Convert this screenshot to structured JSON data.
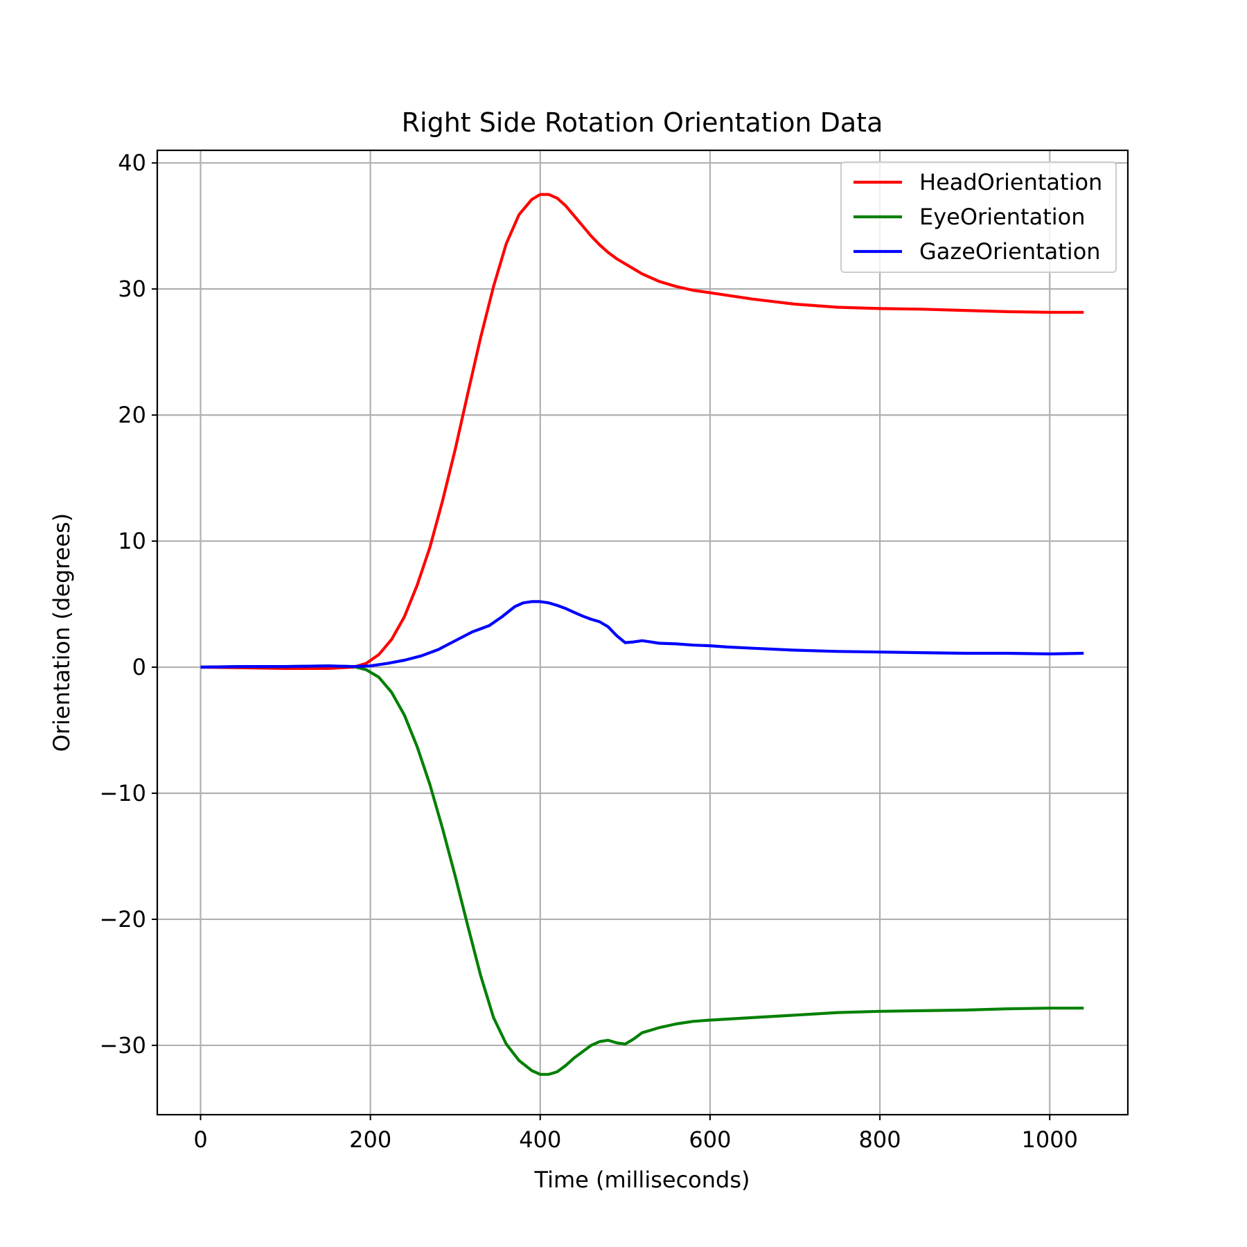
{
  "chart_data": {
    "type": "line",
    "title": "Right Side Rotation Orientation Data",
    "xlabel": "Time (milliseconds)",
    "ylabel": "Orientation (degrees)",
    "xlim": [
      -51,
      1092
    ],
    "ylim": [
      -35.5,
      41
    ],
    "xticks": [
      0,
      200,
      400,
      600,
      800,
      1000
    ],
    "xtick_labels": [
      "0",
      "200",
      "400",
      "600",
      "800",
      "1000"
    ],
    "yticks": [
      -30,
      -20,
      -10,
      0,
      10,
      20,
      30,
      40
    ],
    "ytick_labels": [
      "−30",
      "−20",
      "−10",
      "0",
      "10",
      "20",
      "30",
      "40"
    ],
    "grid": true,
    "legend_position": "upper right",
    "series": [
      {
        "name": "HeadOrientation",
        "color": "#ff0000",
        "x": [
          0,
          50,
          100,
          150,
          180,
          195,
          210,
          225,
          240,
          255,
          270,
          285,
          300,
          315,
          330,
          345,
          360,
          375,
          390,
          400,
          410,
          420,
          430,
          440,
          450,
          460,
          470,
          480,
          490,
          500,
          520,
          540,
          560,
          580,
          600,
          650,
          700,
          750,
          800,
          850,
          900,
          950,
          1000,
          1040
        ],
        "y": [
          0,
          -0.05,
          -0.1,
          -0.1,
          0,
          0.3,
          1.0,
          2.2,
          4.0,
          6.5,
          9.5,
          13.2,
          17.3,
          21.8,
          26.2,
          30.2,
          33.6,
          35.9,
          37.1,
          37.5,
          37.5,
          37.2,
          36.6,
          35.8,
          35.0,
          34.2,
          33.5,
          32.9,
          32.4,
          32.0,
          31.2,
          30.6,
          30.2,
          29.9,
          29.7,
          29.2,
          28.8,
          28.55,
          28.45,
          28.4,
          28.3,
          28.2,
          28.15,
          28.15
        ]
      },
      {
        "name": "EyeOrientation",
        "color": "#008000",
        "x": [
          0,
          50,
          100,
          150,
          180,
          195,
          210,
          225,
          240,
          255,
          270,
          285,
          300,
          315,
          330,
          345,
          360,
          375,
          390,
          400,
          410,
          420,
          430,
          440,
          450,
          460,
          470,
          480,
          490,
          500,
          510,
          520,
          530,
          540,
          560,
          580,
          600,
          650,
          700,
          750,
          800,
          850,
          900,
          950,
          1000,
          1040
        ],
        "y": [
          0,
          0.05,
          0.05,
          0.1,
          0.05,
          -0.2,
          -0.8,
          -2.0,
          -3.8,
          -6.3,
          -9.3,
          -12.8,
          -16.6,
          -20.6,
          -24.5,
          -27.8,
          -29.9,
          -31.2,
          -32.0,
          -32.3,
          -32.3,
          -32.1,
          -31.6,
          -31.0,
          -30.5,
          -30.0,
          -29.7,
          -29.6,
          -29.8,
          -29.9,
          -29.5,
          -29.0,
          -28.8,
          -28.6,
          -28.3,
          -28.1,
          -28.0,
          -27.8,
          -27.6,
          -27.4,
          -27.3,
          -27.25,
          -27.2,
          -27.1,
          -27.05,
          -27.05
        ]
      },
      {
        "name": "GazeOrientation",
        "color": "#0000ff",
        "x": [
          0,
          50,
          100,
          150,
          180,
          200,
          220,
          240,
          260,
          280,
          300,
          320,
          340,
          355,
          370,
          380,
          390,
          400,
          410,
          420,
          430,
          440,
          450,
          460,
          470,
          480,
          490,
          500,
          510,
          520,
          530,
          540,
          560,
          580,
          600,
          620,
          650,
          700,
          750,
          800,
          850,
          900,
          950,
          1000,
          1040
        ],
        "y": [
          0,
          0.05,
          0.05,
          0.1,
          0.05,
          0.1,
          0.3,
          0.55,
          0.9,
          1.4,
          2.1,
          2.8,
          3.3,
          4.0,
          4.8,
          5.1,
          5.2,
          5.2,
          5.1,
          4.9,
          4.65,
          4.35,
          4.05,
          3.8,
          3.6,
          3.2,
          2.5,
          1.95,
          2.0,
          2.1,
          2.0,
          1.9,
          1.85,
          1.75,
          1.7,
          1.6,
          1.5,
          1.35,
          1.25,
          1.2,
          1.15,
          1.1,
          1.1,
          1.05,
          1.1
        ]
      }
    ]
  }
}
